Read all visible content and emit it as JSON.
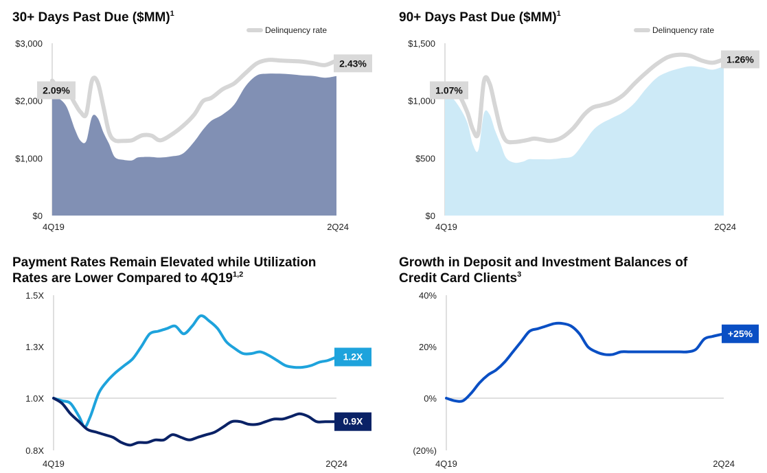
{
  "titles": [
    {
      "text": "30+ Days Past Due ($MM)",
      "sup": "1"
    },
    {
      "text": "90+ Days Past Due ($MM)",
      "sup": "1"
    },
    {
      "text": "Payment Rates Remain Elevated while Utilization",
      "text2": "Rates are Lower Compared to 4Q19",
      "sup": "1,2"
    },
    {
      "text": "Growth in Deposit and Investment Balances of",
      "text2": "Credit Card Clients",
      "sup": "3"
    }
  ],
  "colors": {
    "area30": "#8190b4",
    "area90": "#cdeaf7",
    "delinquency_line": "#d6d6d6",
    "label_box": "#d9d9d9",
    "payment_rate": "#1ea3dc",
    "utilization": "#0a2266",
    "deposit_growth": "#0a4fc4",
    "axis": "#bfbfbf"
  },
  "chart_data": [
    {
      "id": "dpd30",
      "type": "area",
      "title": "30+ Days Past Due ($MM)",
      "x_labels": [
        "4Q19",
        "2Q24"
      ],
      "yticks": [
        0,
        1000,
        2000,
        3000
      ],
      "ytick_labels": [
        "$0",
        "$1,000",
        "$2,000",
        "$3,000"
      ],
      "ylim": [
        0,
        3000
      ],
      "legend": {
        "label": "Delinquency rate",
        "position": "top-right"
      },
      "series": [
        {
          "role": "balance",
          "x": [
            0,
            0.02,
            0.05,
            0.08,
            0.1,
            0.12,
            0.14,
            0.16,
            0.18,
            0.2,
            0.22,
            0.25,
            0.28,
            0.3,
            0.32,
            0.35,
            0.38,
            0.42,
            0.46,
            0.5,
            0.53,
            0.56,
            0.6,
            0.64,
            0.68,
            0.72,
            0.76,
            0.8,
            0.84,
            0.88,
            0.92,
            0.96,
            1.0
          ],
          "values": [
            2080,
            2050,
            1900,
            1500,
            1300,
            1300,
            1720,
            1700,
            1450,
            1250,
            1020,
            970,
            960,
            1010,
            1020,
            1020,
            1010,
            1030,
            1080,
            1290,
            1490,
            1650,
            1760,
            1930,
            2250,
            2440,
            2470,
            2470,
            2460,
            2440,
            2430,
            2400,
            2430
          ]
        },
        {
          "role": "delinquency_rate",
          "x": [
            0,
            0.02,
            0.05,
            0.08,
            0.1,
            0.12,
            0.14,
            0.16,
            0.18,
            0.2,
            0.22,
            0.25,
            0.28,
            0.3,
            0.32,
            0.35,
            0.38,
            0.42,
            0.46,
            0.5,
            0.53,
            0.56,
            0.6,
            0.64,
            0.68,
            0.72,
            0.76,
            0.8,
            0.84,
            0.88,
            0.92,
            0.96,
            1.0
          ],
          "values": [
            2350,
            2250,
            2200,
            1950,
            1800,
            1770,
            2350,
            2320,
            1900,
            1450,
            1310,
            1300,
            1310,
            1360,
            1400,
            1390,
            1310,
            1410,
            1560,
            1760,
            1990,
            2050,
            2200,
            2300,
            2480,
            2650,
            2710,
            2700,
            2690,
            2680,
            2650,
            2620,
            2700
          ]
        }
      ],
      "annotations": [
        {
          "text": "2.09%",
          "x": 0,
          "y": 2300
        },
        {
          "text": "2.43%",
          "x": 1,
          "y": 2650
        }
      ]
    },
    {
      "id": "dpd90",
      "type": "area",
      "title": "90+ Days Past Due ($MM)",
      "x_labels": [
        "4Q19",
        "2Q24"
      ],
      "yticks": [
        0,
        500,
        1000,
        1500
      ],
      "ytick_labels": [
        "$0",
        "$500",
        "$1,000",
        "$1,500"
      ],
      "ylim": [
        0,
        1500
      ],
      "legend": {
        "label": "Delinquency rate",
        "position": "top-right"
      },
      "series": [
        {
          "role": "balance",
          "x": [
            0,
            0.02,
            0.05,
            0.08,
            0.1,
            0.12,
            0.14,
            0.16,
            0.18,
            0.2,
            0.22,
            0.25,
            0.28,
            0.3,
            0.32,
            0.35,
            0.38,
            0.42,
            0.46,
            0.5,
            0.53,
            0.56,
            0.6,
            0.64,
            0.68,
            0.72,
            0.76,
            0.8,
            0.84,
            0.88,
            0.92,
            0.96,
            1.0
          ],
          "values": [
            1050,
            1040,
            950,
            810,
            620,
            570,
            890,
            880,
            740,
            620,
            500,
            460,
            470,
            490,
            490,
            490,
            490,
            500,
            520,
            640,
            740,
            800,
            850,
            900,
            980,
            1100,
            1200,
            1250,
            1280,
            1300,
            1290,
            1270,
            1300
          ]
        },
        {
          "role": "delinquency_rate",
          "x": [
            0,
            0.02,
            0.05,
            0.08,
            0.1,
            0.12,
            0.14,
            0.16,
            0.18,
            0.2,
            0.22,
            0.25,
            0.28,
            0.3,
            0.32,
            0.35,
            0.38,
            0.42,
            0.46,
            0.5,
            0.53,
            0.56,
            0.6,
            0.64,
            0.68,
            0.72,
            0.76,
            0.8,
            0.84,
            0.88,
            0.92,
            0.96,
            1.0
          ],
          "values": [
            1150,
            1100,
            1050,
            900,
            750,
            720,
            1170,
            1150,
            950,
            750,
            650,
            640,
            650,
            660,
            670,
            660,
            650,
            680,
            760,
            880,
            940,
            960,
            990,
            1050,
            1150,
            1240,
            1320,
            1380,
            1400,
            1390,
            1350,
            1330,
            1360
          ]
        }
      ],
      "annotations": [
        {
          "text": "1.07%",
          "x": 0,
          "y": 1150
        },
        {
          "text": "1.26%",
          "x": 1,
          "y": 1360
        }
      ]
    },
    {
      "id": "payment_util",
      "type": "line",
      "x_labels": [
        "4Q19",
        "2Q24"
      ],
      "yticks": [
        0.8,
        1.0,
        1.3,
        1.5
      ],
      "ytick_labels": [
        "0.8X",
        "1.0X",
        "1.3X",
        "1.5X"
      ],
      "ylim": [
        0.8,
        1.5
      ],
      "baseline": 1.0,
      "series": [
        {
          "role": "payment_rate",
          "label": "1.2X",
          "x": [
            0,
            0.03,
            0.06,
            0.09,
            0.11,
            0.13,
            0.16,
            0.19,
            0.22,
            0.25,
            0.28,
            0.31,
            0.34,
            0.37,
            0.4,
            0.43,
            0.46,
            0.49,
            0.52,
            0.55,
            0.58,
            0.61,
            0.64,
            0.67,
            0.7,
            0.73,
            0.76,
            0.79,
            0.82,
            0.85,
            0.88,
            0.91,
            0.94,
            0.97,
            1.0
          ],
          "values": [
            1.0,
            0.99,
            0.98,
            0.93,
            0.89,
            0.93,
            1.03,
            1.1,
            1.15,
            1.19,
            1.23,
            1.3,
            1.35,
            1.36,
            1.37,
            1.38,
            1.35,
            1.38,
            1.42,
            1.4,
            1.37,
            1.32,
            1.29,
            1.26,
            1.26,
            1.27,
            1.25,
            1.22,
            1.19,
            1.18,
            1.18,
            1.19,
            1.21,
            1.22,
            1.24
          ]
        },
        {
          "role": "utilization",
          "label": "0.9X",
          "x": [
            0,
            0.03,
            0.06,
            0.09,
            0.12,
            0.15,
            0.18,
            0.21,
            0.24,
            0.27,
            0.3,
            0.33,
            0.36,
            0.39,
            0.42,
            0.45,
            0.48,
            0.51,
            0.54,
            0.57,
            0.6,
            0.63,
            0.66,
            0.69,
            0.72,
            0.75,
            0.78,
            0.81,
            0.84,
            0.87,
            0.9,
            0.93,
            0.96,
            1.0
          ],
          "values": [
            1.0,
            0.98,
            0.94,
            0.91,
            0.88,
            0.87,
            0.86,
            0.85,
            0.83,
            0.82,
            0.83,
            0.83,
            0.84,
            0.84,
            0.86,
            0.85,
            0.84,
            0.85,
            0.86,
            0.87,
            0.89,
            0.91,
            0.91,
            0.9,
            0.9,
            0.91,
            0.92,
            0.92,
            0.93,
            0.94,
            0.93,
            0.91,
            0.91,
            0.91
          ]
        }
      ]
    },
    {
      "id": "deposit_growth",
      "type": "line",
      "x_labels": [
        "4Q19",
        "2Q24"
      ],
      "yticks": [
        -20,
        0,
        20,
        40
      ],
      "ytick_labels": [
        "(20%)",
        "0%",
        "20%",
        "40%"
      ],
      "ylim": [
        -20,
        40
      ],
      "baseline": 0,
      "series": [
        {
          "role": "deposit_growth",
          "label": "+25%",
          "x": [
            0,
            0.03,
            0.06,
            0.09,
            0.12,
            0.15,
            0.18,
            0.21,
            0.24,
            0.27,
            0.3,
            0.33,
            0.36,
            0.39,
            0.42,
            0.45,
            0.48,
            0.51,
            0.54,
            0.57,
            0.6,
            0.63,
            0.66,
            0.69,
            0.72,
            0.75,
            0.78,
            0.81,
            0.84,
            0.87,
            0.9,
            0.93,
            0.96,
            1.0
          ],
          "values": [
            0,
            -1,
            -1,
            2,
            6,
            9,
            11,
            14,
            18,
            22,
            26,
            27,
            28,
            29,
            29,
            28,
            25,
            20,
            18,
            17,
            17,
            18,
            18,
            18,
            18,
            18,
            18,
            18,
            18,
            18,
            19,
            23,
            24,
            25
          ]
        }
      ]
    }
  ]
}
